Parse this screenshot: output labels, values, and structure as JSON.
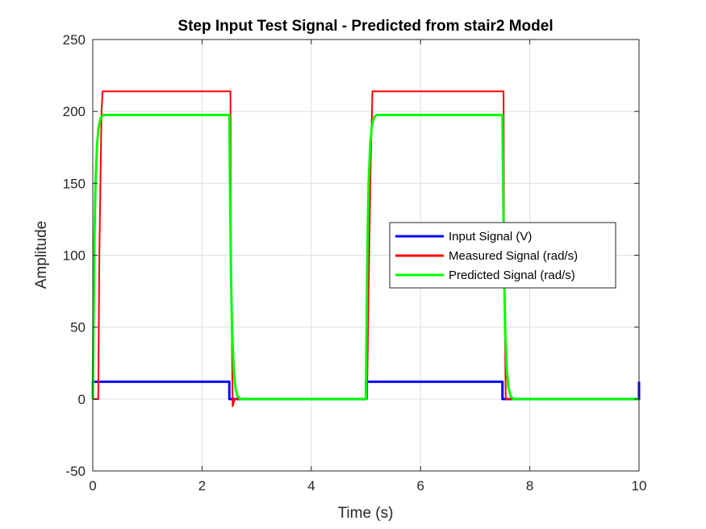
{
  "chart_data": {
    "type": "line",
    "title": "Step Input Test Signal - Predicted from stair2 Model",
    "xlabel": "Time (s)",
    "ylabel": "Amplitude",
    "xlim": [
      0,
      10
    ],
    "ylim": [
      -50,
      250
    ],
    "xticks": [
      0,
      2,
      4,
      6,
      8,
      10
    ],
    "yticks": [
      -50,
      0,
      50,
      100,
      150,
      200,
      250
    ],
    "grid": true,
    "legend_position": "center-right",
    "series": [
      {
        "name": "Input Signal (V)",
        "color": "#0000ff",
        "x": [
          0,
          0,
          2.5,
          2.5,
          5.0,
          5.0,
          7.5,
          7.5,
          10.0,
          10.0
        ],
        "y": [
          0,
          12,
          12,
          0,
          0,
          12,
          12,
          0,
          0,
          12
        ]
      },
      {
        "name": "Measured Signal (rad/s)",
        "color": "#ff0000",
        "noisy": true,
        "x": [
          0,
          0.1,
          0.12,
          0.16,
          0.18,
          0.22,
          2.52,
          2.53,
          2.56,
          2.6,
          5.0,
          5.02,
          5.08,
          5.12,
          7.52,
          7.53,
          7.56,
          7.6,
          10.0
        ],
        "y": [
          0,
          0,
          100,
          200,
          214,
          214,
          214,
          100,
          -5,
          0,
          0,
          0,
          150,
          214,
          214,
          100,
          0,
          0,
          0
        ],
        "noise_band": [
          193,
          233
        ],
        "noisy_segments": [
          [
            0.2,
            2.52
          ],
          [
            5.1,
            7.52
          ]
        ]
      },
      {
        "name": "Predicted Signal (rad/s)",
        "color": "#00ff00",
        "x": [
          0,
          0.01,
          0.03,
          0.05,
          0.08,
          0.11,
          0.15,
          0.2,
          2.5,
          2.51,
          2.53,
          2.55,
          2.58,
          2.61,
          2.65,
          2.7,
          5.0,
          5.01,
          5.03,
          5.05,
          5.08,
          5.11,
          5.15,
          5.2,
          7.5,
          7.51,
          7.53,
          7.55,
          7.58,
          7.61,
          7.65,
          7.7,
          10.0
        ],
        "y": [
          0,
          40,
          110,
          150,
          178,
          190,
          196,
          197.5,
          197.5,
          157,
          88,
          48,
          20,
          8,
          2,
          0,
          0,
          40,
          110,
          150,
          178,
          190,
          196,
          197.5,
          197.5,
          157,
          88,
          48,
          20,
          8,
          2,
          0,
          0
        ]
      }
    ]
  }
}
